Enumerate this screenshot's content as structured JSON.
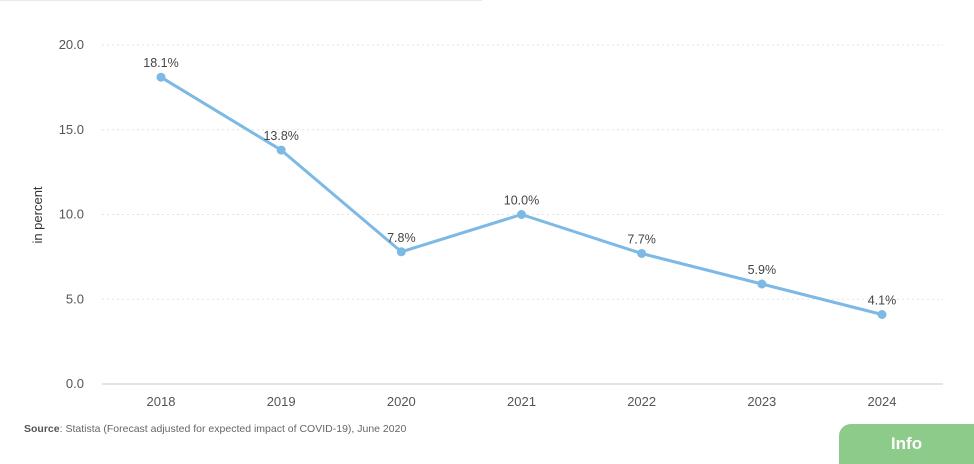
{
  "source": {
    "label": "Source",
    "text": ": Statista (Forecast adjusted for expected impact of COVID-19), June 2020"
  },
  "info_button": {
    "label": "Info"
  },
  "colors": {
    "line": "#7cb9e5",
    "grid": "#e3e3e3",
    "axis": "#c8c8c8",
    "info_button": "#8ccb8a"
  },
  "chart_data": {
    "type": "line",
    "title": "",
    "xlabel": "",
    "ylabel": "in percent",
    "categories": [
      "2018",
      "2019",
      "2020",
      "2021",
      "2022",
      "2023",
      "2024"
    ],
    "series": [
      {
        "values": [
          18.1,
          13.8,
          7.8,
          10.0,
          7.7,
          5.9,
          4.1
        ],
        "labels": [
          "18.1%",
          "13.8%",
          "7.8%",
          "10.0%",
          "7.7%",
          "5.9%",
          "4.1%"
        ]
      }
    ],
    "ylim": [
      0,
      20
    ],
    "yticks": [
      "0.0",
      "5.0",
      "10.0",
      "15.0",
      "20.0"
    ],
    "grid": true,
    "legend": "none"
  }
}
